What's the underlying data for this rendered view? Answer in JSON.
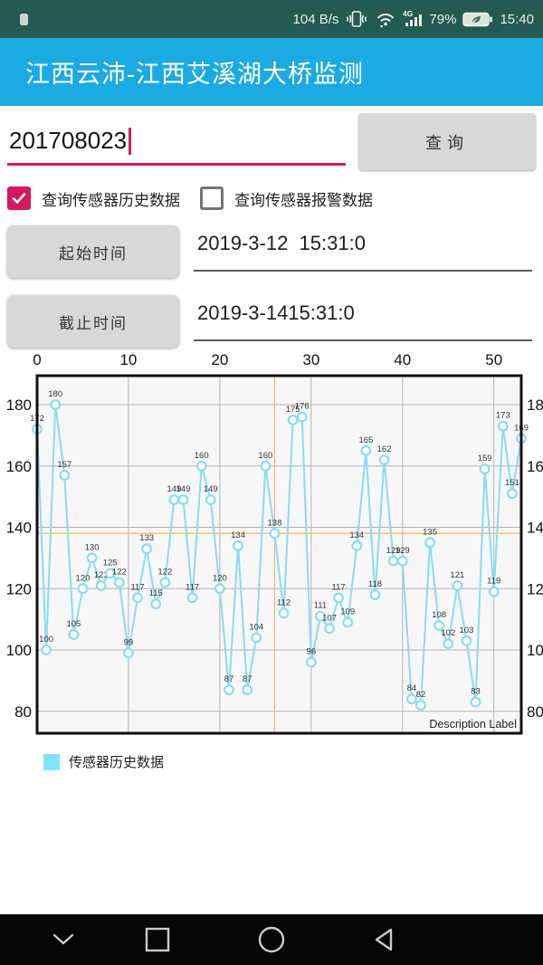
{
  "status_bar": {
    "net_speed": "104 B/s",
    "battery_percent": "79%",
    "time": "15:40"
  },
  "header": {
    "title": "江西云沛-江西艾溪湖大桥监测"
  },
  "query": {
    "sensor_id_value": "201708023",
    "query_button_label": "查询",
    "history_checkbox_label": "查询传感器历史数据",
    "history_checked": true,
    "alarm_checkbox_label": "查询传感器报警数据",
    "alarm_checked": false,
    "start_time_button_label": "起始时间",
    "start_time_value": "2019-3-12  15:31:0",
    "end_time_button_label": "截止时间",
    "end_time_value": "2019-3-1415:31:0"
  },
  "chart_data": {
    "type": "line",
    "series_name": "传感器历史数据",
    "x": [
      0,
      1,
      2,
      3,
      4,
      5,
      6,
      7,
      8,
      9,
      10,
      11,
      12,
      13,
      14,
      15,
      16,
      17,
      18,
      19,
      20,
      21,
      22,
      23,
      24,
      25,
      26,
      27,
      28,
      29,
      30,
      31,
      32,
      33,
      34,
      35,
      36,
      37,
      38,
      39,
      40,
      41,
      42,
      43,
      44,
      45,
      46,
      47,
      48,
      49,
      50,
      51,
      52,
      53
    ],
    "values": [
      172,
      100,
      180,
      157,
      105,
      120,
      130,
      121,
      125,
      122,
      99,
      117,
      133,
      115,
      122,
      149,
      149,
      117,
      160,
      149,
      120,
      87,
      134,
      87,
      104,
      160,
      138,
      112,
      175,
      176,
      96,
      111,
      107,
      117,
      109,
      134,
      165,
      118,
      162,
      129,
      129,
      84,
      82,
      135,
      108,
      102,
      121,
      103,
      83,
      159,
      119,
      173,
      151,
      169
    ],
    "x_ticks": [
      0,
      10,
      20,
      30,
      40,
      50
    ],
    "y_ticks": [
      180,
      160,
      140,
      120,
      100,
      80
    ],
    "xlim": [
      0,
      53
    ],
    "ylim": [
      72,
      190
    ],
    "grid": true,
    "highlight": {
      "x": 26,
      "y": 138
    },
    "description_label": "Description Label",
    "line_color": "#8adcf2",
    "point_fill": "#ffffff",
    "highlight_color": "#f0b96d",
    "grid_color": "#b3b3b3",
    "plot_bg": "#f7f7f7"
  },
  "legend": {
    "label": "传感器历史数据",
    "swatch_color": "#82e4f7"
  },
  "colors": {
    "accent_pink": "#d6195e",
    "header_blue": "#1caae2",
    "status_teal": "#245a52"
  }
}
